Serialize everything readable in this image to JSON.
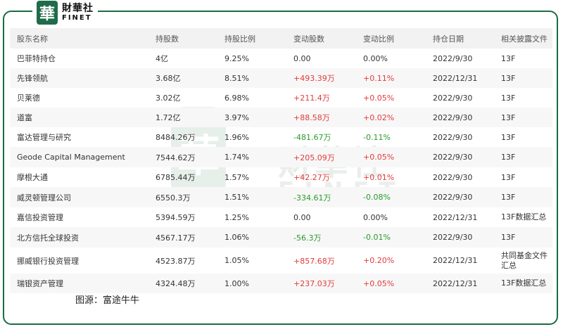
{
  "logo": {
    "badge": "華",
    "cn": "財華社",
    "en": "FINET"
  },
  "watermark": {
    "badge": "華",
    "cn": "財華社",
    "en": "FINET"
  },
  "caption": "图源：富途牛牛",
  "columns": [
    "股东名称",
    "持股数",
    "持股比例",
    "变动股数",
    "变动比例",
    "持仓日期",
    "相关披露文件"
  ],
  "rows": [
    {
      "name": "巴菲特持仓",
      "shares": "4亿",
      "pct": "9.25%",
      "chg": "0.00",
      "chg_dir": "neu",
      "chg_pct": "0.00%",
      "pct_dir": "neu",
      "date": "2022/9/30",
      "doc": "13F"
    },
    {
      "name": "先锋领航",
      "shares": "3.68亿",
      "pct": "8.51%",
      "chg": "+493.39万",
      "chg_dir": "pos",
      "chg_pct": "+0.11%",
      "pct_dir": "pos",
      "date": "2022/12/31",
      "doc": "13F"
    },
    {
      "name": "贝莱德",
      "shares": "3.02亿",
      "pct": "6.98%",
      "chg": "+211.4万",
      "chg_dir": "pos",
      "chg_pct": "+0.05%",
      "pct_dir": "pos",
      "date": "2022/9/30",
      "doc": "13F"
    },
    {
      "name": "道富",
      "shares": "1.72亿",
      "pct": "3.97%",
      "chg": "+88.58万",
      "chg_dir": "pos",
      "chg_pct": "+0.02%",
      "pct_dir": "pos",
      "date": "2022/9/30",
      "doc": "13F"
    },
    {
      "name": "富达管理与研究",
      "shares": "8484.26万",
      "pct": "1.96%",
      "chg": "-481.67万",
      "chg_dir": "neg",
      "chg_pct": "-0.11%",
      "pct_dir": "neg",
      "date": "2022/9/30",
      "doc": "13F"
    },
    {
      "name": "Geode Capital Management",
      "shares": "7544.62万",
      "pct": "1.74%",
      "chg": "+205.09万",
      "chg_dir": "pos",
      "chg_pct": "+0.05%",
      "pct_dir": "pos",
      "date": "2022/9/30",
      "doc": "13F"
    },
    {
      "name": "摩根大通",
      "shares": "6785.44万",
      "pct": "1.57%",
      "chg": "+42.27万",
      "chg_dir": "pos",
      "chg_pct": "+0.01%",
      "pct_dir": "pos",
      "date": "2022/9/30",
      "doc": "13F"
    },
    {
      "name": "威灵顿管理公司",
      "shares": "6550.3万",
      "pct": "1.51%",
      "chg": "-334.61万",
      "chg_dir": "neg",
      "chg_pct": "-0.08%",
      "pct_dir": "neg",
      "date": "2022/9/30",
      "doc": "13F"
    },
    {
      "name": "嘉信投资管理",
      "shares": "5394.59万",
      "pct": "1.25%",
      "chg": "0.00",
      "chg_dir": "neu",
      "chg_pct": "0.00%",
      "pct_dir": "neu",
      "date": "2022/12/31",
      "doc": "13F数据汇总"
    },
    {
      "name": "北方信托全球投资",
      "shares": "4567.17万",
      "pct": "1.06%",
      "chg": "-56.3万",
      "chg_dir": "neg",
      "chg_pct": "-0.01%",
      "pct_dir": "neg",
      "date": "2022/9/30",
      "doc": "13F"
    },
    {
      "name": "挪威银行投资管理",
      "shares": "4523.87万",
      "pct": "1.05%",
      "chg": "+857.68万",
      "chg_dir": "pos",
      "chg_pct": "+0.20%",
      "pct_dir": "pos",
      "date": "2022/12/31",
      "doc": "共同基金文件汇总"
    },
    {
      "name": "瑞银资产管理",
      "shares": "4324.48万",
      "pct": "1.00%",
      "chg": "+237.03万",
      "chg_dir": "pos",
      "chg_pct": "+0.05%",
      "pct_dir": "pos",
      "date": "2022/12/31",
      "doc": "13F数据汇总"
    }
  ]
}
